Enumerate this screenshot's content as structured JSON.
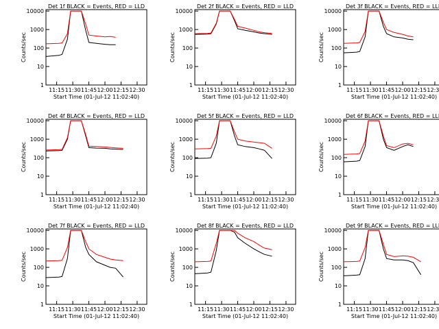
{
  "figure": {
    "ylabel": "Counts/sec",
    "xlabel": "Start Time (01-Jul-12 11:02:40)",
    "x_ticks": [
      "11:15",
      "11:30",
      "11:45",
      "12:00",
      "12:15",
      "12:30"
    ],
    "y_ticks": [
      "1",
      "10",
      "100",
      "1000",
      "10000"
    ],
    "colors": {
      "events": "#000000",
      "lld": "#ff0000"
    }
  },
  "chart_data": [
    {
      "type": "line",
      "title": "Det 1f BLACK = Events, RED = LLD",
      "xlabel": "Start Time (01-Jul-12 11:02:40)",
      "ylabel": "Counts/sec",
      "xlim": [
        "11:05",
        "12:39"
      ],
      "ylim": [
        1,
        12000
      ],
      "y_scale": "log",
      "x_ticks": [
        "11:15",
        "11:30",
        "11:45",
        "12:00",
        "12:15",
        "12:30"
      ],
      "series": [
        {
          "color": "#000000",
          "x": [
            "11:05",
            "11:17",
            "11:20",
            "11:25",
            "11:28",
            "11:34",
            "11:38",
            "11:42",
            "11:45",
            "11:52",
            "12:00",
            "12:05",
            "12:10",
            "12:17"
          ],
          "y": [
            35,
            40,
            45,
            300,
            10000,
            10000,
            10000,
            900,
            200,
            180,
            160,
            150,
            150,
            null
          ]
        },
        {
          "color": "#ff0000",
          "x": [
            "11:05",
            "11:17",
            "11:20",
            "11:25",
            "11:28",
            "11:34",
            "11:38",
            "11:42",
            "11:45",
            "11:52",
            "12:00",
            "12:05",
            "12:10",
            "12:17"
          ],
          "y": [
            170,
            180,
            190,
            600,
            10000,
            10000,
            10000,
            2000,
            500,
            450,
            400,
            420,
            380,
            null
          ]
        }
      ]
    },
    {
      "type": "line",
      "title": "Det 2f BLACK = Events, RED = LLD",
      "xlabel": "Start Time (01-Jul-12 11:02:40)",
      "ylabel": "Counts/sec",
      "xlim": [
        "11:05",
        "12:39"
      ],
      "ylim": [
        1,
        12000
      ],
      "y_scale": "log",
      "x_ticks": [
        "11:15",
        "11:30",
        "11:45",
        "12:00",
        "12:15",
        "12:30"
      ],
      "series": [
        {
          "color": "#000000",
          "x": [
            "11:05",
            "11:17",
            "11:20",
            "11:25",
            "11:28",
            "11:34",
            "11:38",
            "11:42",
            "11:45",
            "11:52",
            "12:00",
            "12:05",
            "12:10",
            "12:17"
          ],
          "y": [
            550,
            570,
            600,
            2000,
            10000,
            10000,
            10000,
            3000,
            1100,
            900,
            750,
            650,
            600,
            550
          ]
        },
        {
          "color": "#ff0000",
          "x": [
            "11:05",
            "11:17",
            "11:20",
            "11:25",
            "11:28",
            "11:34",
            "11:38",
            "11:42",
            "11:45",
            "11:52",
            "12:00",
            "12:05",
            "12:10",
            "12:17"
          ],
          "y": [
            600,
            620,
            650,
            2200,
            10000,
            10000,
            10000,
            3500,
            1500,
            1200,
            900,
            750,
            680,
            620
          ]
        }
      ]
    },
    {
      "type": "line",
      "title": "Det 3f BLACK = Events, RED = LLD",
      "xlabel": "Start Time (01-Jul-12 11:02:40)",
      "ylabel": "Counts/sec",
      "xlim": [
        "11:05",
        "12:39"
      ],
      "ylim": [
        1,
        12000
      ],
      "y_scale": "log",
      "x_ticks": [
        "11:15",
        "11:30",
        "11:45",
        "12:00",
        "12:15",
        "12:30"
      ],
      "series": [
        {
          "color": "#000000",
          "x": [
            "11:05",
            "11:17",
            "11:20",
            "11:25",
            "11:28",
            "11:34",
            "11:38",
            "11:42",
            "11:45",
            "11:52",
            "12:00",
            "12:05",
            "12:10",
            "12:17"
          ],
          "y": [
            55,
            60,
            65,
            400,
            10000,
            10000,
            10000,
            1500,
            600,
            400,
            350,
            300,
            280,
            null
          ]
        },
        {
          "color": "#ff0000",
          "x": [
            "11:05",
            "11:17",
            "11:20",
            "11:25",
            "11:28",
            "11:34",
            "11:38",
            "11:42",
            "11:45",
            "11:52",
            "12:00",
            "12:05",
            "12:10",
            "12:17"
          ],
          "y": [
            180,
            190,
            200,
            800,
            10000,
            10000,
            10000,
            2500,
            1000,
            700,
            550,
            450,
            400,
            null
          ]
        }
      ]
    },
    {
      "type": "line",
      "title": "Det 4f BLACK = Events, RED = LLD",
      "xlabel": "Start Time (01-Jul-12 11:02:40)",
      "ylabel": "Counts/sec",
      "xlim": [
        "11:05",
        "12:39"
      ],
      "ylim": [
        1,
        12000
      ],
      "y_scale": "log",
      "x_ticks": [
        "11:15",
        "11:30",
        "11:45",
        "12:00",
        "12:15",
        "12:30"
      ],
      "series": [
        {
          "color": "#000000",
          "x": [
            "11:05",
            "11:17",
            "11:20",
            "11:25",
            "11:28",
            "11:34",
            "11:38",
            "11:42",
            "11:45",
            "11:52",
            "12:00",
            "12:05",
            "12:10",
            "12:17"
          ],
          "y": [
            230,
            240,
            250,
            1000,
            10000,
            10000,
            10000,
            1500,
            350,
            330,
            320,
            300,
            290,
            280
          ]
        },
        {
          "color": "#ff0000",
          "x": [
            "11:05",
            "11:17",
            "11:20",
            "11:25",
            "11:28",
            "11:34",
            "11:38",
            "11:42",
            "11:45",
            "11:52",
            "12:00",
            "12:05",
            "12:10",
            "12:17"
          ],
          "y": [
            260,
            270,
            280,
            1200,
            10000,
            10000,
            10000,
            1800,
            420,
            400,
            380,
            360,
            340,
            320
          ]
        }
      ]
    },
    {
      "type": "line",
      "title": "Det 5f BLACK = Events, RED = LLD",
      "xlabel": "Start Time (01-Jul-12 11:02:40)",
      "ylabel": "Counts/sec",
      "xlim": [
        "11:05",
        "12:39"
      ],
      "ylim": [
        1,
        12000
      ],
      "y_scale": "log",
      "x_ticks": [
        "11:15",
        "11:30",
        "11:45",
        "12:00",
        "12:15",
        "12:30"
      ],
      "series": [
        {
          "color": "#000000",
          "x": [
            "11:05",
            "11:17",
            "11:20",
            "11:25",
            "11:28",
            "11:34",
            "11:38",
            "11:42",
            "11:45",
            "11:52",
            "12:00",
            "12:05",
            "12:10",
            "12:17"
          ],
          "y": [
            90,
            95,
            100,
            600,
            10000,
            10000,
            10000,
            1500,
            500,
            400,
            350,
            300,
            250,
            90
          ]
        },
        {
          "color": "#ff0000",
          "x": [
            "11:05",
            "11:17",
            "11:20",
            "11:25",
            "11:28",
            "11:34",
            "11:38",
            "11:42",
            "11:45",
            "11:52",
            "12:00",
            "12:05",
            "12:10",
            "12:17"
          ],
          "y": [
            300,
            310,
            320,
            1500,
            10000,
            10000,
            10000,
            2500,
            1000,
            800,
            700,
            650,
            600,
            320
          ]
        }
      ]
    },
    {
      "type": "line",
      "title": "Det 6f BLACK = Events, RED = LLD",
      "xlabel": "Start Time (01-Jul-12 11:02:40)",
      "ylabel": "Counts/sec",
      "xlim": [
        "11:05",
        "12:39"
      ],
      "ylim": [
        1,
        12000
      ],
      "y_scale": "log",
      "x_ticks": [
        "11:15",
        "11:30",
        "11:45",
        "12:00",
        "12:15",
        "12:30"
      ],
      "series": [
        {
          "color": "#000000",
          "x": [
            "11:05",
            "11:17",
            "11:20",
            "11:25",
            "11:28",
            "11:34",
            "11:38",
            "11:42",
            "11:45",
            "11:52",
            "12:00",
            "12:05",
            "12:10",
            "12:17"
          ],
          "y": [
            60,
            65,
            70,
            400,
            10000,
            10000,
            10000,
            1000,
            350,
            250,
            400,
            500,
            400,
            null
          ]
        },
        {
          "color": "#ff0000",
          "x": [
            "11:05",
            "11:17",
            "11:20",
            "11:25",
            "11:28",
            "11:34",
            "11:38",
            "11:42",
            "11:45",
            "11:52",
            "12:00",
            "12:05",
            "12:10",
            "12:17"
          ],
          "y": [
            150,
            160,
            170,
            800,
            10000,
            10000,
            10000,
            1500,
            450,
            350,
            550,
            600,
            500,
            null
          ]
        }
      ]
    },
    {
      "type": "line",
      "title": "Det 7f BLACK = Events, RED = LLD",
      "xlabel": "Start Time (01-Jul-12 11:02:40)",
      "ylabel": "Counts/sec",
      "xlim": [
        "11:05",
        "12:39"
      ],
      "ylim": [
        1,
        12000
      ],
      "y_scale": "log",
      "x_ticks": [
        "11:15",
        "11:30",
        "11:45",
        "12:00",
        "12:15",
        "12:30"
      ],
      "series": [
        {
          "color": "#000000",
          "x": [
            "11:05",
            "11:17",
            "11:20",
            "11:25",
            "11:28",
            "11:34",
            "11:38",
            "11:42",
            "11:45",
            "11:52",
            "12:00",
            "12:05",
            "12:10",
            "12:17"
          ],
          "y": [
            28,
            30,
            32,
            300,
            10000,
            10000,
            10000,
            1200,
            500,
            200,
            130,
            100,
            90,
            30
          ]
        },
        {
          "color": "#ff0000",
          "x": [
            "11:05",
            "11:17",
            "11:20",
            "11:25",
            "11:28",
            "11:34",
            "11:38",
            "11:42",
            "11:45",
            "11:52",
            "12:00",
            "12:05",
            "12:10",
            "12:17"
          ],
          "y": [
            220,
            230,
            240,
            1200,
            10000,
            10000,
            10000,
            2500,
            1000,
            500,
            350,
            280,
            250,
            230
          ]
        }
      ]
    },
    {
      "type": "line",
      "title": "Det 8f BLACK = Events, RED = LLD",
      "xlabel": "Start Time (01-Jul-12 11:02:40)",
      "ylabel": "Counts/sec",
      "xlim": [
        "11:05",
        "12:39"
      ],
      "ylim": [
        1,
        12000
      ],
      "y_scale": "log",
      "x_ticks": [
        "11:15",
        "11:30",
        "11:45",
        "12:00",
        "12:15",
        "12:30"
      ],
      "series": [
        {
          "color": "#000000",
          "x": [
            "11:05",
            "11:17",
            "11:20",
            "11:25",
            "11:28",
            "11:34",
            "11:38",
            "11:42",
            "11:45",
            "11:52",
            "12:00",
            "12:05",
            "12:10",
            "12:17"
          ],
          "y": [
            45,
            50,
            55,
            800,
            10000,
            10000,
            10000,
            8000,
            4000,
            2000,
            1000,
            700,
            500,
            400
          ]
        },
        {
          "color": "#ff0000",
          "x": [
            "11:05",
            "11:17",
            "11:20",
            "11:25",
            "11:28",
            "11:34",
            "11:38",
            "11:42",
            "11:45",
            "11:52",
            "12:00",
            "12:05",
            "12:10",
            "12:17"
          ],
          "y": [
            200,
            210,
            220,
            2000,
            10000,
            10000,
            10000,
            10000,
            7000,
            4000,
            2500,
            1600,
            1100,
            900
          ]
        }
      ]
    },
    {
      "type": "line",
      "title": "Det 9f BLACK = Events, RED = LLD",
      "xlabel": "Start Time (01-Jul-12 11:02:40)",
      "ylabel": "Counts/sec",
      "xlim": [
        "11:05",
        "12:39"
      ],
      "ylim": [
        1,
        12000
      ],
      "y_scale": "log",
      "x_ticks": [
        "11:15",
        "11:30",
        "11:45",
        "12:00",
        "12:15",
        "12:30"
      ],
      "series": [
        {
          "color": "#000000",
          "x": [
            "11:05",
            "11:17",
            "11:20",
            "11:25",
            "11:28",
            "11:34",
            "11:38",
            "11:42",
            "11:45",
            "11:52",
            "12:00",
            "12:05",
            "12:10",
            "12:17"
          ],
          "y": [
            35,
            38,
            40,
            300,
            10000,
            10000,
            10000,
            1000,
            300,
            250,
            250,
            230,
            180,
            40
          ]
        },
        {
          "color": "#ff0000",
          "x": [
            "11:05",
            "11:17",
            "11:20",
            "11:25",
            "11:28",
            "11:34",
            "11:38",
            "11:42",
            "11:45",
            "11:52",
            "12:00",
            "12:05",
            "12:10",
            "12:17"
          ],
          "y": [
            200,
            210,
            220,
            1200,
            10000,
            10000,
            10000,
            1800,
            500,
            380,
            420,
            400,
            350,
            200
          ]
        }
      ]
    }
  ]
}
